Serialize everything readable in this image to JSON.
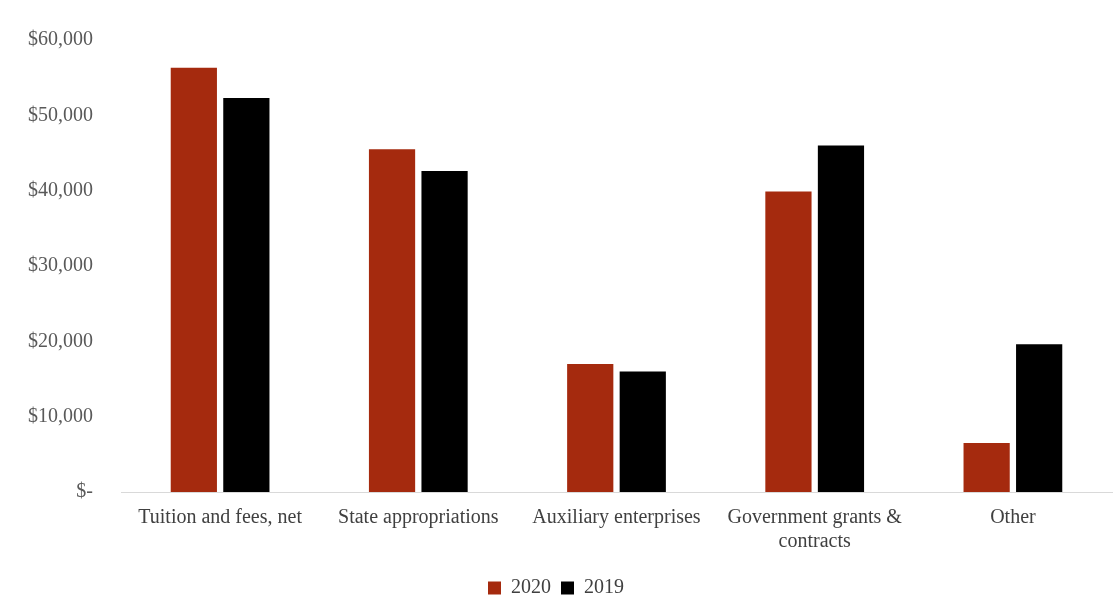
{
  "chart_data": {
    "type": "bar",
    "categories": [
      "Tuition and fees, net",
      "State appropriations",
      "Auxiliary enterprises",
      "Government grants & contracts",
      "Other"
    ],
    "series": [
      {
        "name": "2020",
        "color": "#a52a0e",
        "values": [
          56300,
          45500,
          17000,
          39900,
          6500
        ]
      },
      {
        "name": "2019",
        "color": "#000000",
        "values": [
          52300,
          42600,
          16000,
          46000,
          19600
        ]
      }
    ],
    "ylim": [
      0,
      60000
    ],
    "yticks": [
      {
        "value": 0,
        "label": "$-"
      },
      {
        "value": 10000,
        "label": "$10,000"
      },
      {
        "value": 20000,
        "label": "$20,000"
      },
      {
        "value": 30000,
        "label": "$30,000"
      },
      {
        "value": 40000,
        "label": "$40,000"
      },
      {
        "value": 50000,
        "label": "$50,000"
      },
      {
        "value": 60000,
        "label": "$60,000"
      }
    ],
    "grid": false,
    "legend": "bottom"
  }
}
